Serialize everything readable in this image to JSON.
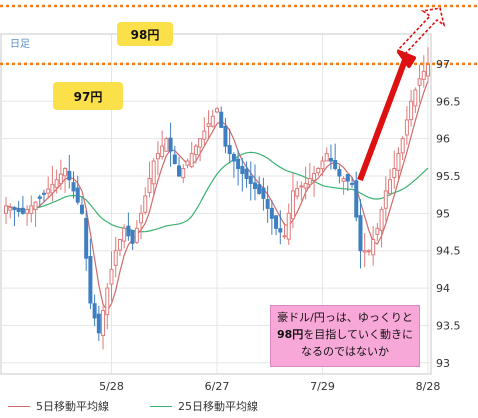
{
  "chart_data": {
    "type": "candlestick",
    "timeframe_label": "日足",
    "x_tick_labels": [
      "5/28",
      "6/27",
      "7/29",
      "8/28"
    ],
    "y_ticks": [
      93,
      93.5,
      94,
      94.5,
      95,
      95.5,
      96,
      96.5,
      97
    ],
    "ylim": [
      92.85,
      97.4
    ],
    "reference_lines": [
      {
        "label": "98円",
        "value": 97.85,
        "color": "#f07d1a"
      },
      {
        "label": "97円",
        "value": 97.0,
        "color": "#f07d1a"
      }
    ],
    "legend": [
      {
        "name": "5日移動平均線",
        "color": "#d36a6a"
      },
      {
        "name": "25日移動平均線",
        "color": "#3cb371"
      }
    ],
    "annotation": {
      "line1": "豪ドル/円っは、ゆっくりと",
      "line2_bold": "98円",
      "line2_rest": "を目指していく動きに",
      "line3": "なるのではないか"
    },
    "close_points": [
      {
        "i": 0,
        "close": 95.1
      },
      {
        "i": 4,
        "close": 95.0
      },
      {
        "i": 8,
        "close": 95.2
      },
      {
        "i": 12,
        "close": 95.45
      },
      {
        "i": 14,
        "close": 95.6
      },
      {
        "i": 18,
        "close": 95.0
      },
      {
        "i": 20,
        "close": 93.8
      },
      {
        "i": 22,
        "close": 93.4
      },
      {
        "i": 24,
        "close": 94.0
      },
      {
        "i": 26,
        "close": 94.5
      },
      {
        "i": 28,
        "close": 94.8
      },
      {
        "i": 30,
        "close": 94.6
      },
      {
        "i": 32,
        "close": 95.0
      },
      {
        "i": 35,
        "close": 95.7
      },
      {
        "i": 38,
        "close": 96.0
      },
      {
        "i": 41,
        "close": 95.5
      },
      {
        "i": 44,
        "close": 95.8
      },
      {
        "i": 47,
        "close": 96.1
      },
      {
        "i": 50,
        "close": 96.4
      },
      {
        "i": 52,
        "close": 95.9
      },
      {
        "i": 55,
        "close": 95.6
      },
      {
        "i": 58,
        "close": 95.4
      },
      {
        "i": 61,
        "close": 95.2
      },
      {
        "i": 64,
        "close": 94.8
      },
      {
        "i": 66,
        "close": 94.7
      },
      {
        "i": 68,
        "close": 95.3
      },
      {
        "i": 71,
        "close": 95.4
      },
      {
        "i": 74,
        "close": 95.6
      },
      {
        "i": 76,
        "close": 95.8
      },
      {
        "i": 79,
        "close": 95.5
      },
      {
        "i": 82,
        "close": 95.4
      },
      {
        "i": 84,
        "close": 94.5
      },
      {
        "i": 86,
        "close": 94.5
      },
      {
        "i": 88,
        "close": 94.8
      },
      {
        "i": 90,
        "close": 95.3
      },
      {
        "i": 92,
        "close": 95.6
      },
      {
        "i": 94,
        "close": 96.0
      },
      {
        "i": 96,
        "close": 96.5
      },
      {
        "i": 98,
        "close": 96.8
      },
      {
        "i": 100,
        "close": 97.0
      }
    ]
  }
}
